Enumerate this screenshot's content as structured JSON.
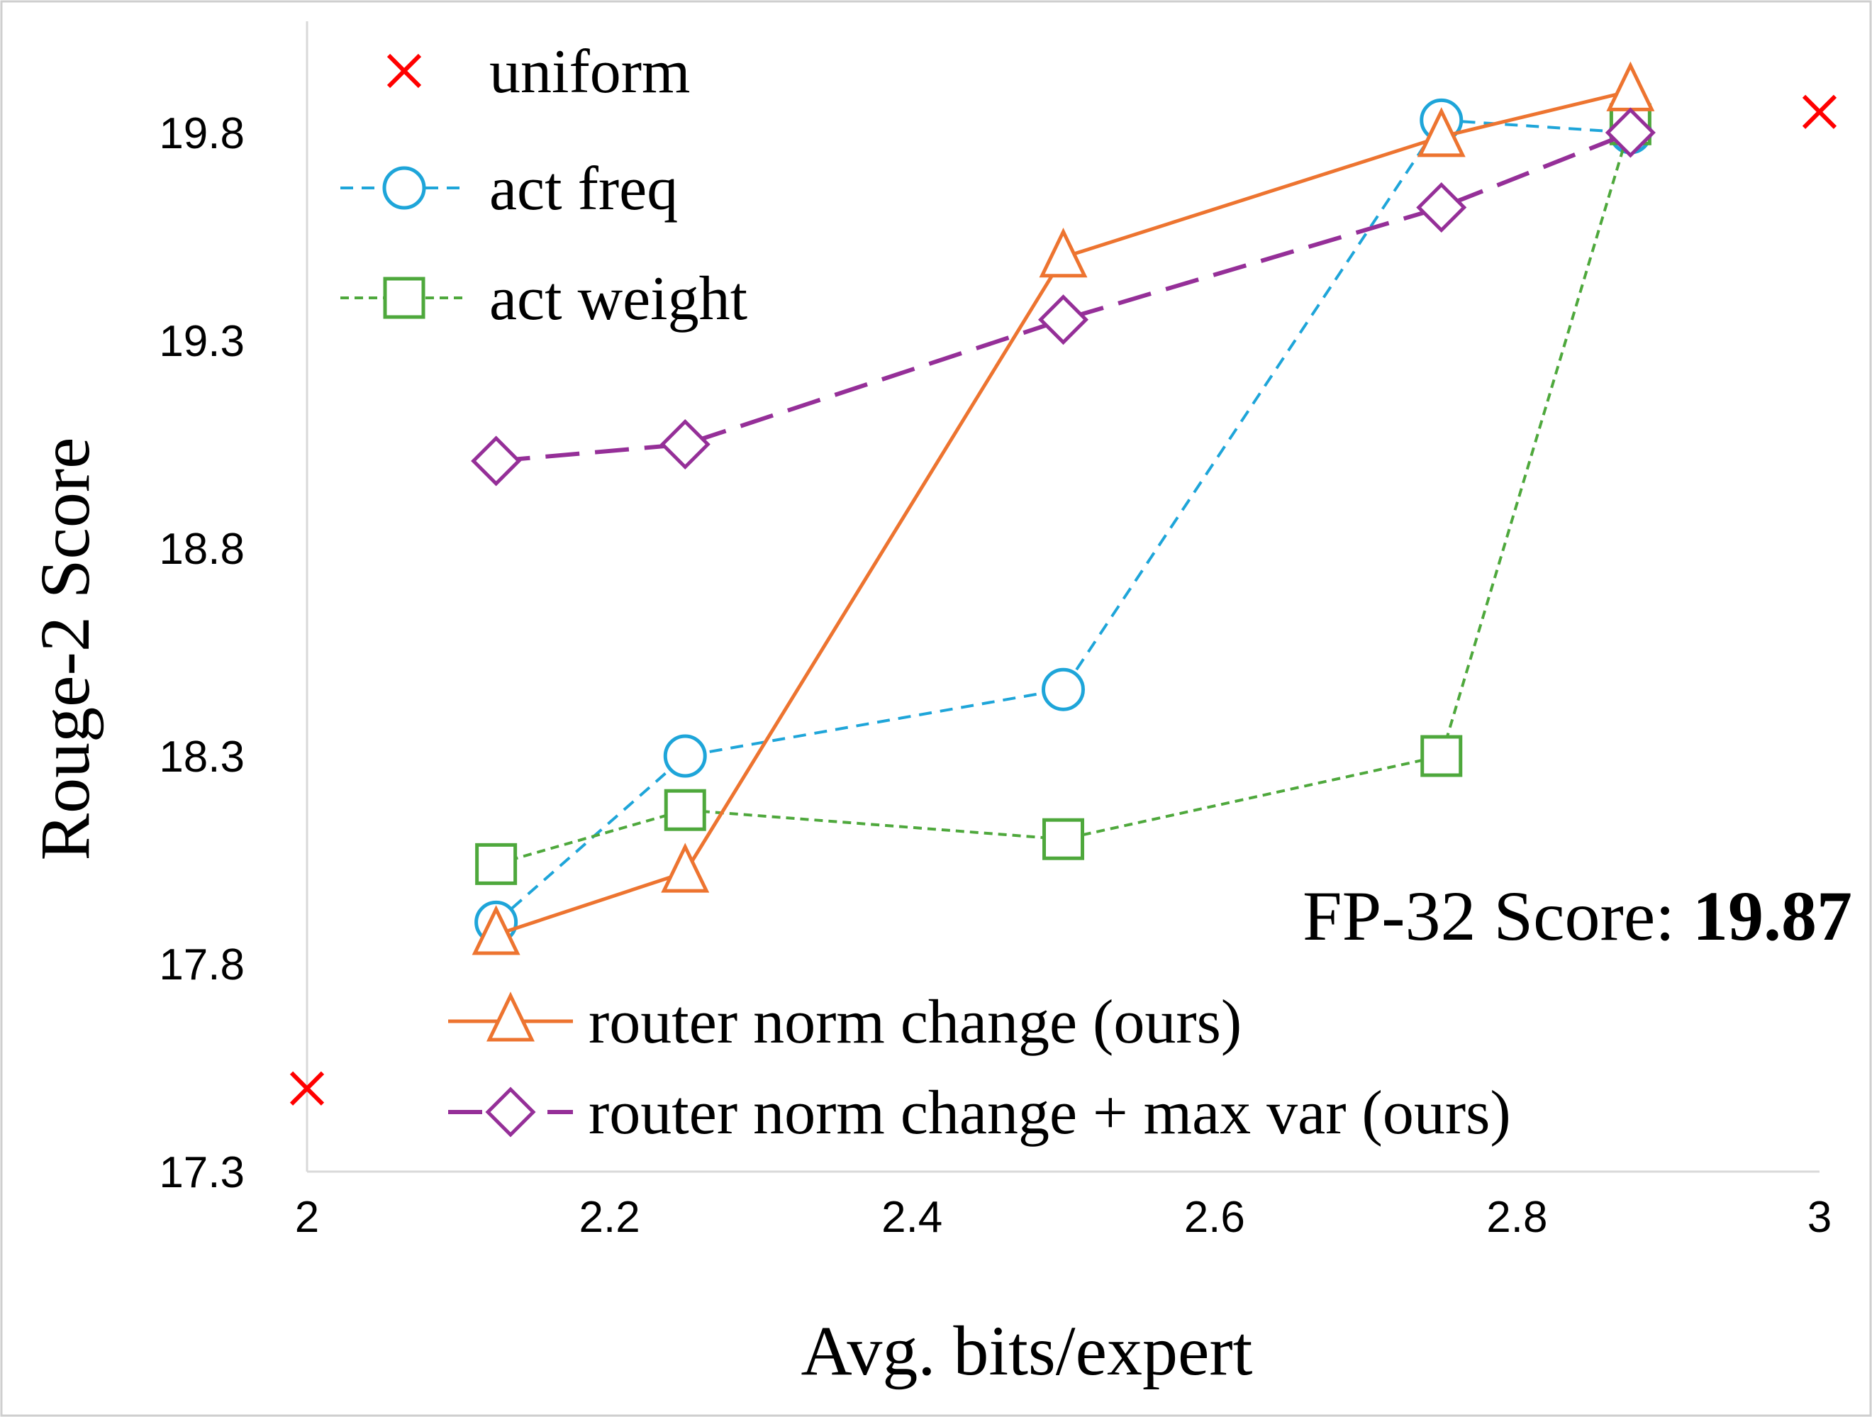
{
  "chart_data": {
    "type": "line",
    "xlabel": "Avg. bits/expert",
    "ylabel": "Rouge-2 Score",
    "xlim": [
      2,
      3
    ],
    "ylim": [
      17.3,
      20.0
    ],
    "x_ticks": [
      "2",
      "2.2",
      "2.4",
      "2.6",
      "2.8",
      "3"
    ],
    "x_tick_values": [
      2,
      2.2,
      2.4,
      2.6,
      2.8,
      3
    ],
    "y_ticks": [
      "17.3",
      "17.8",
      "18.3",
      "18.8",
      "19.3",
      "19.8"
    ],
    "y_tick_values": [
      17.3,
      17.8,
      18.3,
      18.8,
      19.3,
      19.8
    ],
    "annotation": {
      "label": "FP-32 Score:",
      "value": "19.87"
    },
    "series": [
      {
        "name": "uniform",
        "color": "#ff0000",
        "marker": "x",
        "line": "none",
        "x": [
          2,
          3
        ],
        "y": [
          17.5,
          19.85
        ]
      },
      {
        "name": "act freq",
        "color": "#1ea5d9",
        "marker": "circle",
        "line": "dash-short",
        "x": [
          2.125,
          2.25,
          2.5,
          2.75,
          2.875
        ],
        "y": [
          17.9,
          18.3,
          18.46,
          19.83,
          19.8
        ]
      },
      {
        "name": "act weight",
        "color": "#4ea83c",
        "marker": "square",
        "line": "dotted",
        "x": [
          2.125,
          2.25,
          2.5,
          2.75,
          2.875
        ],
        "y": [
          18.04,
          18.17,
          18.1,
          18.3,
          19.82
        ]
      },
      {
        "name": "router norm change (ours)",
        "color": "#ed7430",
        "marker": "triangle",
        "line": "solid",
        "x": [
          2.125,
          2.25,
          2.5,
          2.75,
          2.875
        ],
        "y": [
          17.87,
          18.02,
          19.5,
          19.79,
          19.9
        ]
      },
      {
        "name": "router norm change + max var (ours)",
        "color": "#952f98",
        "marker": "diamond",
        "line": "dash-long",
        "x": [
          2.125,
          2.25,
          2.5,
          2.75,
          2.875
        ],
        "y": [
          19.01,
          19.05,
          19.35,
          19.62,
          19.8
        ]
      }
    ],
    "legend_top": [
      "uniform",
      "act freq",
      "act weight"
    ],
    "legend_bottom": [
      "router norm change (ours)",
      "router norm change + max var (ours)"
    ]
  }
}
